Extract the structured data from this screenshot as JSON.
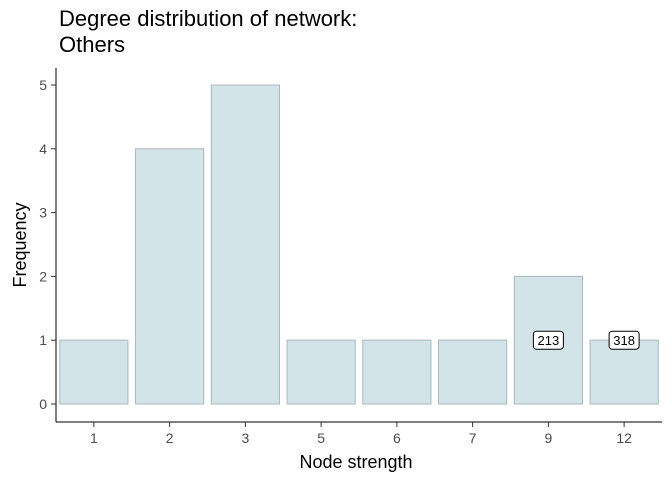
{
  "chart_data": {
    "type": "bar",
    "title_lines": [
      "Degree distribution of network:",
      "Others"
    ],
    "xlabel": "Node strength",
    "ylabel": "Frequency",
    "categories": [
      "1",
      "2",
      "3",
      "5",
      "6",
      "7",
      "9",
      "12"
    ],
    "values": [
      1,
      4,
      5,
      1,
      1,
      1,
      2,
      1
    ],
    "ylim": [
      0,
      5.25
    ],
    "yticks": [
      0,
      1,
      2,
      3,
      4,
      5
    ],
    "annotations": [
      {
        "category": "9",
        "y": 1,
        "text": "213"
      },
      {
        "category": "12",
        "y": 1,
        "text": "318"
      }
    ],
    "grid": false,
    "bar_color": "#d3e4e8",
    "bar_border_color": "#a8b8bc"
  }
}
